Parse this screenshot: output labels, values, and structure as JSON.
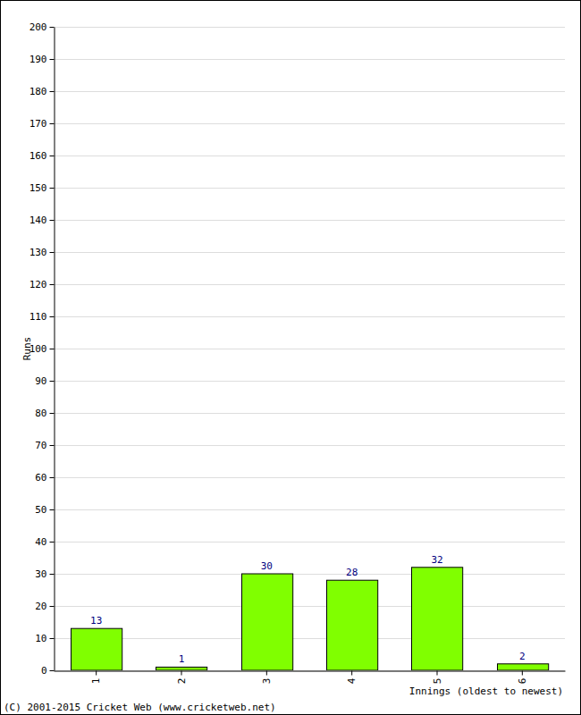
{
  "chart_data": {
    "type": "bar",
    "categories": [
      "1",
      "2",
      "3",
      "4",
      "5",
      "6"
    ],
    "values": [
      13,
      1,
      30,
      28,
      32,
      2
    ],
    "color": "#80ff00",
    "x_label": "Innings (oldest to newest)",
    "y_label": "Runs",
    "source": "(C) 2001-2015 Cricket Web (www.cricketweb.net)",
    "ylim": [
      0,
      200
    ],
    "yticks": [
      0,
      10,
      20,
      30,
      40,
      50,
      60,
      70,
      80,
      90,
      100,
      110,
      120,
      130,
      140,
      150,
      160,
      170,
      180,
      190,
      200
    ],
    "grid": true,
    "data_labels": true
  }
}
